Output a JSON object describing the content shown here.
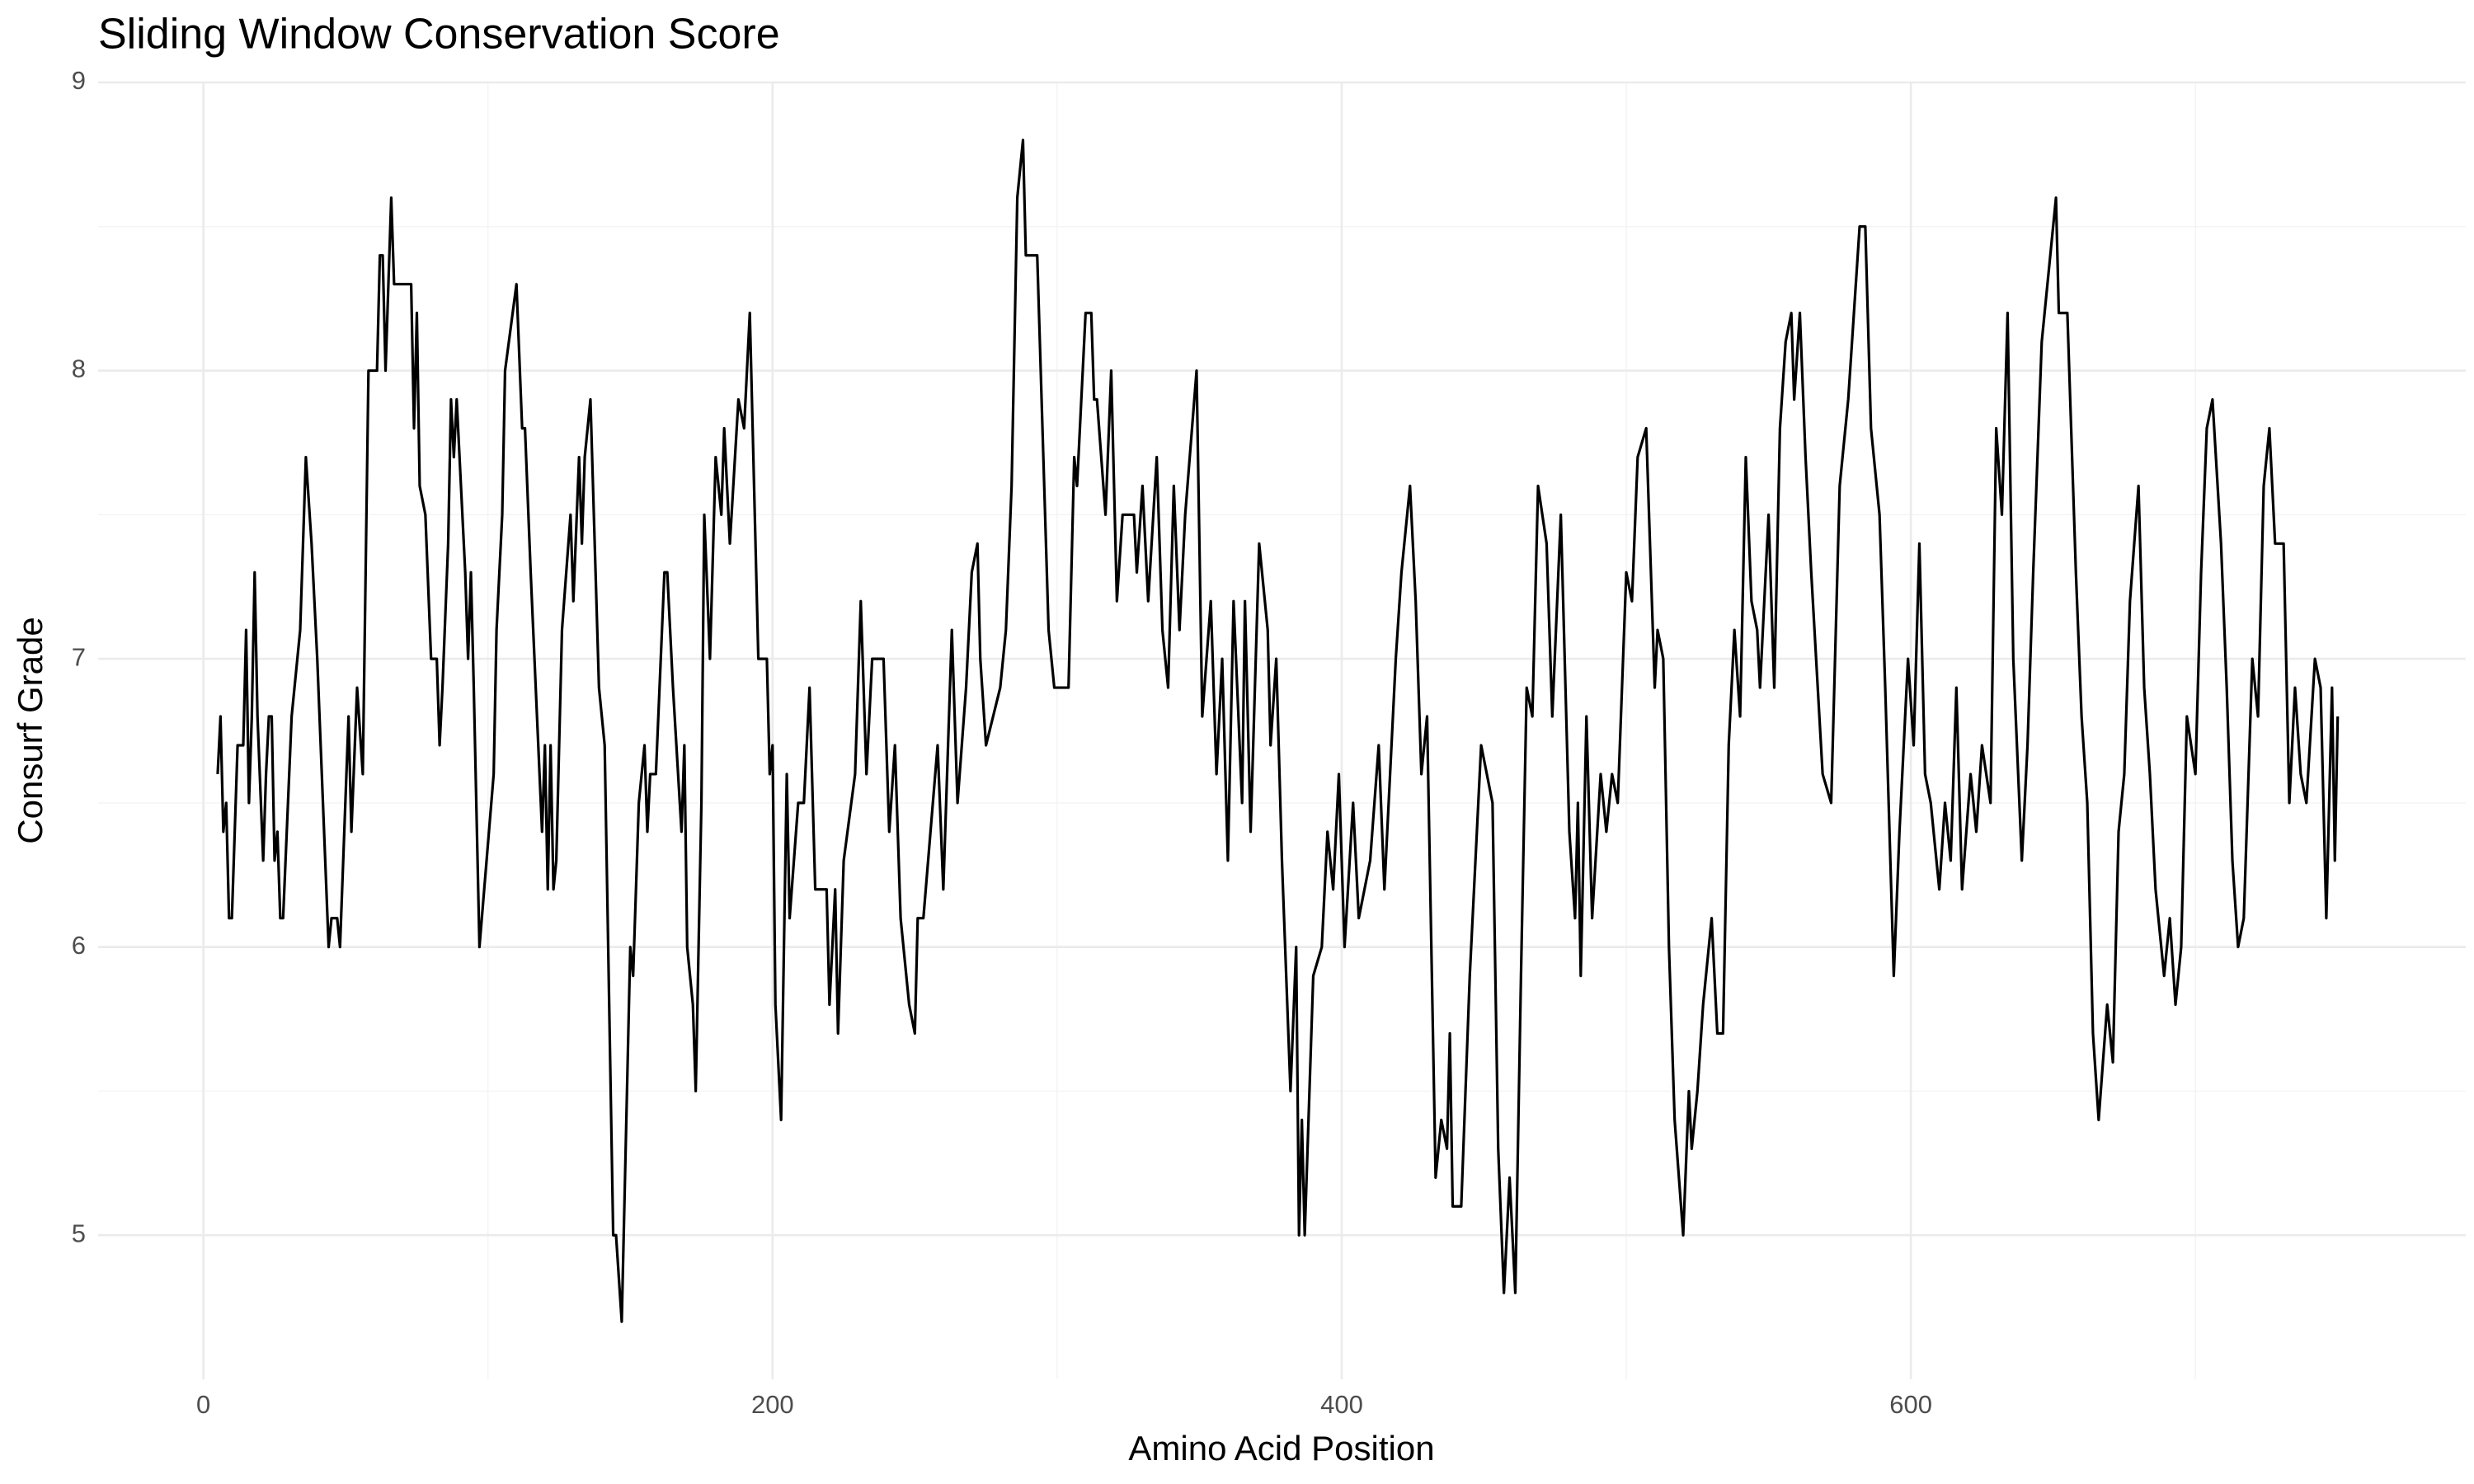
{
  "chart_data": {
    "type": "line",
    "title": "Sliding Window Conservation Score",
    "x_label": "Amino Acid Position",
    "y_label": "Consurf Grade",
    "color": "#000000",
    "grid": true,
    "x": [
      5,
      6,
      7,
      8,
      9,
      10,
      12,
      14,
      15,
      16,
      17,
      18,
      19,
      21,
      22,
      23,
      24,
      25,
      26,
      27,
      28,
      31,
      33,
      34,
      36,
      38,
      40,
      42,
      44,
      45,
      47,
      48,
      51,
      52,
      54,
      56,
      58,
      61,
      62,
      63,
      64,
      65,
      66,
      67,
      71,
      73,
      74,
      75,
      76,
      78,
      80,
      82,
      83,
      84,
      86,
      87,
      88,
      89,
      92,
      93,
      94,
      95,
      97,
      102,
      103,
      105,
      106,
      110,
      112,
      113,
      115,
      119,
      120,
      121,
      122,
      123,
      124,
      126,
      129,
      130,
      132,
      133,
      134,
      136,
      139,
      141,
      144,
      145,
      147,
      150,
      151,
      153,
      155,
      156,
      157,
      159,
      162,
      163,
      165,
      168,
      169,
      170,
      172,
      173,
      175,
      176,
      178,
      180,
      182,
      183,
      185,
      188,
      190,
      192,
      193,
      195,
      198,
      199,
      200,
      201,
      203,
      205,
      206,
      209,
      211,
      213,
      215,
      219,
      220,
      222,
      223,
      225,
      229,
      231,
      233,
      235,
      239,
      241,
      243,
      245,
      248,
      250,
      251,
      253,
      258,
      260,
      263,
      265,
      268,
      270,
      272,
      273,
      275,
      280,
      282,
      284,
      286,
      288,
      289,
      293,
      297,
      299,
      304,
      306,
      307,
      310,
      312,
      313,
      314,
      317,
      319,
      321,
      323,
      327,
      328,
      330,
      332,
      335,
      337,
      339,
      341,
      343,
      345,
      349,
      351,
      354,
      356,
      358,
      360,
      362,
      365,
      366,
      368,
      371,
      374,
      375,
      377,
      379,
      382,
      384,
      385,
      386,
      387,
      390,
      393,
      395,
      397,
      399,
      401,
      404,
      406,
      410,
      413,
      415,
      417,
      419,
      421,
      424,
      426,
      428,
      430,
      433,
      435,
      437,
      438,
      439,
      442,
      445,
      447,
      449,
      453,
      455,
      457,
      459,
      461,
      463,
      465,
      467,
      469,
      472,
      474,
      477,
      480,
      482,
      483,
      484,
      486,
      488,
      491,
      493,
      495,
      497,
      500,
      502,
      504,
      507,
      510,
      511,
      513,
      515,
      517,
      520,
      522,
      523,
      525,
      527,
      530,
      532,
      534,
      536,
      538,
      540,
      542,
      544,
      546,
      547,
      550,
      552,
      554,
      556,
      558,
      559,
      561,
      563,
      565,
      569,
      572,
      575,
      578,
      580,
      582,
      584,
      586,
      589,
      591,
      594,
      596,
      599,
      601,
      603,
      605,
      607,
      610,
      612,
      614,
      616,
      618,
      621,
      623,
      625,
      628,
      630,
      632,
      634,
      636,
      639,
      641,
      643,
      646,
      651,
      652,
      655,
      658,
      660,
      662,
      664,
      666,
      669,
      671,
      673,
      675,
      677,
      680,
      682,
      684,
      686,
      689,
      691,
      693,
      695,
      697,
      700,
      702,
      704,
      706,
      709,
      711,
      713,
      715,
      717,
      720,
      722,
      724,
      726,
      728,
      731,
      733,
      735,
      737,
      739,
      742,
      744,
      746,
      748,
      749,
      750
    ],
    "values": [
      6.6,
      6.8,
      6.4,
      6.5,
      6.1,
      6.1,
      6.7,
      6.7,
      7.1,
      6.5,
      6.8,
      7.3,
      6.8,
      6.3,
      6.6,
      6.8,
      6.8,
      6.3,
      6.4,
      6.1,
      6.1,
      6.8,
      7.0,
      7.1,
      7.7,
      7.4,
      7.0,
      6.5,
      6.0,
      6.1,
      6.1,
      6.0,
      6.8,
      6.4,
      6.9,
      6.6,
      8.0,
      8.0,
      8.4,
      8.4,
      8.0,
      8.3,
      8.6,
      8.3,
      8.3,
      8.3,
      7.8,
      8.2,
      7.6,
      7.5,
      7.0,
      7.0,
      6.7,
      6.9,
      7.4,
      7.9,
      7.7,
      7.9,
      7.3,
      7.0,
      7.3,
      6.9,
      6.0,
      6.6,
      7.1,
      7.5,
      8.0,
      8.3,
      7.8,
      7.8,
      7.3,
      6.4,
      6.7,
      6.2,
      6.7,
      6.2,
      6.3,
      7.1,
      7.5,
      7.2,
      7.7,
      7.4,
      7.7,
      7.9,
      6.9,
      6.7,
      5.0,
      5.0,
      4.7,
      6.0,
      5.9,
      6.5,
      6.7,
      6.4,
      6.6,
      6.6,
      7.3,
      7.3,
      6.9,
      6.4,
      6.7,
      6.0,
      5.8,
      5.5,
      6.5,
      7.5,
      7.0,
      7.7,
      7.5,
      7.8,
      7.4,
      7.9,
      7.8,
      8.2,
      7.8,
      7.0,
      7.0,
      6.6,
      6.7,
      5.8,
      5.4,
      6.6,
      6.1,
      6.5,
      6.5,
      6.9,
      6.2,
      6.2,
      5.8,
      6.2,
      5.7,
      6.3,
      6.6,
      7.2,
      6.6,
      7.0,
      7.0,
      6.4,
      6.7,
      6.1,
      5.8,
      5.7,
      6.1,
      6.1,
      6.7,
      6.2,
      7.1,
      6.5,
      6.9,
      7.3,
      7.4,
      7.0,
      6.7,
      6.9,
      7.1,
      7.6,
      8.6,
      8.8,
      8.4,
      8.4,
      7.1,
      6.9,
      6.9,
      7.7,
      7.6,
      8.2,
      8.2,
      7.9,
      7.9,
      7.5,
      8.0,
      7.2,
      7.5,
      7.5,
      7.3,
      7.6,
      7.2,
      7.7,
      7.1,
      6.9,
      7.6,
      7.1,
      7.5,
      8.0,
      6.8,
      7.2,
      6.6,
      7.0,
      6.3,
      7.2,
      6.5,
      7.2,
      6.4,
      7.4,
      7.1,
      6.7,
      7.0,
      6.3,
      5.5,
      6.0,
      5.0,
      5.4,
      5.0,
      5.9,
      6.0,
      6.4,
      6.2,
      6.6,
      6.0,
      6.5,
      6.1,
      6.3,
      6.7,
      6.2,
      6.6,
      7.0,
      7.3,
      7.6,
      7.2,
      6.6,
      6.8,
      5.2,
      5.4,
      5.3,
      5.7,
      5.1,
      5.1,
      5.9,
      6.3,
      6.7,
      6.5,
      5.3,
      4.8,
      5.2,
      4.8,
      5.9,
      6.9,
      6.8,
      7.6,
      7.4,
      6.8,
      7.5,
      6.4,
      6.1,
      6.5,
      5.9,
      6.8,
      6.1,
      6.6,
      6.4,
      6.6,
      6.5,
      7.3,
      7.2,
      7.7,
      7.8,
      6.9,
      7.1,
      7.0,
      6.0,
      5.4,
      5.0,
      5.5,
      5.3,
      5.5,
      5.8,
      6.1,
      5.7,
      5.7,
      6.7,
      7.1,
      6.8,
      7.7,
      7.2,
      7.1,
      6.9,
      7.5,
      6.9,
      7.8,
      8.1,
      8.2,
      7.9,
      8.2,
      7.7,
      7.3,
      6.6,
      6.5,
      7.6,
      7.9,
      8.2,
      8.5,
      8.5,
      7.8,
      7.5,
      6.9,
      5.9,
      6.4,
      7.0,
      6.7,
      7.4,
      6.6,
      6.5,
      6.2,
      6.5,
      6.3,
      6.9,
      6.2,
      6.6,
      6.4,
      6.7,
      6.5,
      7.8,
      7.5,
      8.2,
      7.0,
      6.3,
      6.7,
      7.3,
      8.1,
      8.6,
      8.2,
      8.2,
      7.3,
      6.8,
      6.5,
      5.7,
      5.4,
      5.8,
      5.6,
      6.4,
      6.6,
      7.2,
      7.6,
      6.9,
      6.6,
      6.2,
      5.9,
      6.1,
      5.8,
      6.0,
      6.8,
      6.6,
      7.3,
      7.8,
      7.9,
      7.4,
      6.9,
      6.3,
      6.0,
      6.1,
      7.0,
      6.8,
      7.6,
      7.8,
      7.4,
      7.4,
      6.5,
      6.9,
      6.6,
      6.5,
      7.0,
      6.9,
      6.1,
      6.9,
      6.3,
      6.8
    ],
    "xlim": [
      -37,
      795
    ],
    "ylim": [
      4.5,
      9.0
    ],
    "xticks": [
      0,
      200,
      400,
      600
    ],
    "yticks": [
      5,
      6,
      7,
      8,
      9
    ]
  }
}
